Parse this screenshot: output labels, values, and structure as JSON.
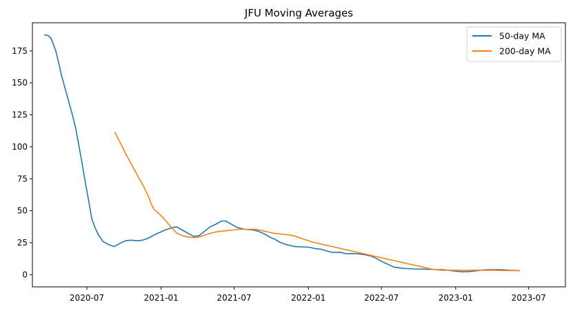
{
  "chart_data": {
    "type": "line",
    "title": "JFU Moving Averages",
    "xlabel": "",
    "ylabel": "",
    "x_range": [
      "2020-02-17",
      "2023-09-30"
    ],
    "ylim": [
      -9.5,
      197
    ],
    "x_ticks": [
      {
        "date": "2020-07-01",
        "label": "2020-07"
      },
      {
        "date": "2021-01-01",
        "label": "2021-01"
      },
      {
        "date": "2021-07-01",
        "label": "2021-07"
      },
      {
        "date": "2022-01-01",
        "label": "2022-01"
      },
      {
        "date": "2022-07-01",
        "label": "2022-07"
      },
      {
        "date": "2023-01-01",
        "label": "2023-01"
      },
      {
        "date": "2023-07-01",
        "label": "2023-07"
      }
    ],
    "y_ticks": [
      0,
      25,
      50,
      75,
      100,
      125,
      150,
      175
    ],
    "grid": false,
    "legend_position": "top-right",
    "series": [
      {
        "name": "50-day MA",
        "color": "#1f77b4",
        "points": [
          [
            "2020-03-17",
            187.5
          ],
          [
            "2020-03-27",
            187.0
          ],
          [
            "2020-04-03",
            185.0
          ],
          [
            "2020-04-08",
            181.0
          ],
          [
            "2020-04-15",
            175.0
          ],
          [
            "2020-04-22",
            166.0
          ],
          [
            "2020-04-29",
            156.0
          ],
          [
            "2020-05-06",
            148.0
          ],
          [
            "2020-05-13",
            140.0
          ],
          [
            "2020-05-20",
            132.0
          ],
          [
            "2020-05-27",
            124.0
          ],
          [
            "2020-06-03",
            115.0
          ],
          [
            "2020-06-10",
            103.0
          ],
          [
            "2020-06-17",
            91.0
          ],
          [
            "2020-06-24",
            78.0
          ],
          [
            "2020-06-29",
            69.0
          ],
          [
            "2020-07-06",
            57.0
          ],
          [
            "2020-07-13",
            44.0
          ],
          [
            "2020-07-21",
            37.0
          ],
          [
            "2020-07-29",
            31.5
          ],
          [
            "2020-08-10",
            26.0
          ],
          [
            "2020-08-24",
            23.5
          ],
          [
            "2020-09-07",
            22.0
          ],
          [
            "2020-09-21",
            24.5
          ],
          [
            "2020-10-05",
            26.5
          ],
          [
            "2020-10-19",
            27.0
          ],
          [
            "2020-11-02",
            26.5
          ],
          [
            "2020-11-16",
            27.0
          ],
          [
            "2020-11-30",
            28.5
          ],
          [
            "2020-12-14",
            31.0
          ],
          [
            "2020-12-28",
            33.0
          ],
          [
            "2021-01-11",
            35.0
          ],
          [
            "2021-01-25",
            36.5
          ],
          [
            "2021-02-08",
            37.5
          ],
          [
            "2021-02-22",
            35.0
          ],
          [
            "2021-03-08",
            32.5
          ],
          [
            "2021-03-22",
            30.0
          ],
          [
            "2021-04-05",
            30.5
          ],
          [
            "2021-04-19",
            34.0
          ],
          [
            "2021-05-03",
            37.5
          ],
          [
            "2021-05-17",
            39.5
          ],
          [
            "2021-05-31",
            42.0
          ],
          [
            "2021-06-10",
            42.0
          ],
          [
            "2021-06-24",
            39.5
          ],
          [
            "2021-07-08",
            37.0
          ],
          [
            "2021-07-26",
            35.5
          ],
          [
            "2021-08-16",
            35.0
          ],
          [
            "2021-08-30",
            34.0
          ],
          [
            "2021-09-13",
            32.0
          ],
          [
            "2021-09-27",
            29.5
          ],
          [
            "2021-10-11",
            27.5
          ],
          [
            "2021-10-25",
            25.0
          ],
          [
            "2021-11-08",
            23.5
          ],
          [
            "2021-11-29",
            22.0
          ],
          [
            "2022-01-03",
            21.5
          ],
          [
            "2022-01-17",
            20.5
          ],
          [
            "2022-01-31",
            20.0
          ],
          [
            "2022-02-28",
            17.5
          ],
          [
            "2022-03-21",
            17.5
          ],
          [
            "2022-04-04",
            16.5
          ],
          [
            "2022-05-02",
            16.5
          ],
          [
            "2022-05-23",
            15.5
          ],
          [
            "2022-06-06",
            14.5
          ],
          [
            "2022-06-20",
            12.5
          ],
          [
            "2022-07-04",
            10.0
          ],
          [
            "2022-07-18",
            8.0
          ],
          [
            "2022-08-01",
            6.0
          ],
          [
            "2022-08-22",
            5.0
          ],
          [
            "2022-09-19",
            4.5
          ],
          [
            "2022-10-31",
            4.2
          ],
          [
            "2022-12-05",
            3.8
          ],
          [
            "2022-12-26",
            3.0
          ],
          [
            "2023-01-16",
            2.3
          ],
          [
            "2023-01-30",
            2.3
          ],
          [
            "2023-02-20",
            3.0
          ],
          [
            "2023-03-13",
            3.8
          ],
          [
            "2023-04-03",
            4.0
          ],
          [
            "2023-04-24",
            4.0
          ],
          [
            "2023-05-15",
            3.5
          ],
          [
            "2023-06-09",
            3.2
          ]
        ]
      },
      {
        "name": "200-day MA",
        "color": "#ff7f0e",
        "points": [
          [
            "2020-09-08",
            111.5
          ],
          [
            "2020-09-22",
            103.0
          ],
          [
            "2020-10-06",
            94.0
          ],
          [
            "2020-10-20",
            86.0
          ],
          [
            "2020-11-03",
            78.0
          ],
          [
            "2020-11-17",
            70.0
          ],
          [
            "2020-12-01",
            61.0
          ],
          [
            "2020-12-08",
            55.0
          ],
          [
            "2020-12-15",
            51.0
          ],
          [
            "2020-12-29",
            47.0
          ],
          [
            "2021-01-12",
            42.5
          ],
          [
            "2021-01-26",
            37.0
          ],
          [
            "2021-02-09",
            32.5
          ],
          [
            "2021-02-23",
            30.5
          ],
          [
            "2021-03-09",
            29.5
          ],
          [
            "2021-03-23",
            29.0
          ],
          [
            "2021-04-06",
            29.5
          ],
          [
            "2021-04-20",
            31.0
          ],
          [
            "2021-05-04",
            32.5
          ],
          [
            "2021-05-18",
            33.5
          ],
          [
            "2021-06-01",
            34.0
          ],
          [
            "2021-06-15",
            34.5
          ],
          [
            "2021-06-29",
            35.0
          ],
          [
            "2021-07-13",
            35.5
          ],
          [
            "2021-07-27",
            35.5
          ],
          [
            "2021-08-10",
            35.5
          ],
          [
            "2021-08-24",
            35.5
          ],
          [
            "2021-09-07",
            34.5
          ],
          [
            "2021-09-21",
            33.5
          ],
          [
            "2021-10-05",
            32.5
          ],
          [
            "2021-10-19",
            32.0
          ],
          [
            "2021-11-02",
            31.5
          ],
          [
            "2021-11-16",
            31.0
          ],
          [
            "2021-11-30",
            30.0
          ],
          [
            "2021-12-14",
            28.5
          ],
          [
            "2021-12-28",
            27.0
          ],
          [
            "2022-01-11",
            25.5
          ],
          [
            "2022-01-25",
            24.5
          ],
          [
            "2022-02-08",
            23.5
          ],
          [
            "2022-02-22",
            22.5
          ],
          [
            "2022-03-08",
            21.5
          ],
          [
            "2022-03-22",
            20.5
          ],
          [
            "2022-04-05",
            19.5
          ],
          [
            "2022-04-19",
            18.5
          ],
          [
            "2022-05-03",
            17.5
          ],
          [
            "2022-05-17",
            16.5
          ],
          [
            "2022-05-31",
            15.5
          ],
          [
            "2022-06-14",
            14.5
          ],
          [
            "2022-06-28",
            13.5
          ],
          [
            "2022-07-12",
            12.5
          ],
          [
            "2022-07-26",
            11.5
          ],
          [
            "2022-08-09",
            10.5
          ],
          [
            "2022-08-23",
            9.5
          ],
          [
            "2022-09-06",
            8.5
          ],
          [
            "2022-09-20",
            7.5
          ],
          [
            "2022-10-04",
            6.5
          ],
          [
            "2022-10-18",
            5.5
          ],
          [
            "2022-11-01",
            4.5
          ],
          [
            "2022-11-15",
            3.8
          ],
          [
            "2022-11-29",
            3.5
          ],
          [
            "2022-12-13",
            3.5
          ],
          [
            "2023-01-10",
            3.5
          ],
          [
            "2023-02-07",
            3.5
          ],
          [
            "2023-03-07",
            3.5
          ],
          [
            "2023-04-04",
            3.5
          ],
          [
            "2023-05-02",
            3.3
          ],
          [
            "2023-06-09",
            3.2
          ]
        ]
      }
    ]
  }
}
